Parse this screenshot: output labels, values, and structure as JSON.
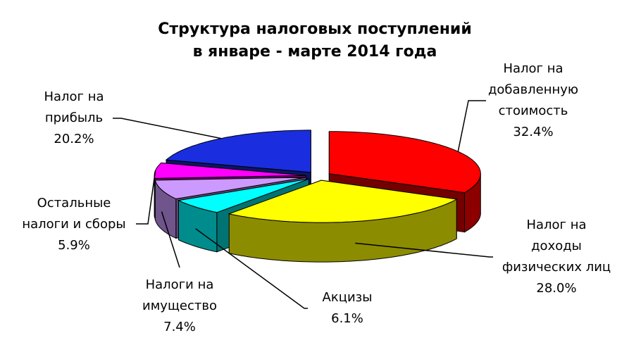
{
  "chart_data": {
    "type": "pie3d",
    "title": "Структура налоговых поступлений\nв январе - марте 2014 года",
    "categories": [
      "Налог на\nдобавленную\nстоимость",
      "Налог на\nдоходы\nфизических лиц",
      "Акцизы",
      "Налоги на\nимущество",
      "Остальные\nналоги и сборы",
      "Налог на\nприбыль"
    ],
    "values": [
      32.4,
      28.0,
      6.1,
      7.4,
      5.9,
      20.2
    ],
    "value_labels": [
      "32.4%",
      "28.0%",
      "6.1%",
      "7.4%",
      "5.9%",
      "20.2%"
    ],
    "colors": [
      "#ff0000",
      "#ffff00",
      "#00ffff",
      "#cc99ff",
      "#ff00ff",
      "#1a2ee0"
    ]
  }
}
